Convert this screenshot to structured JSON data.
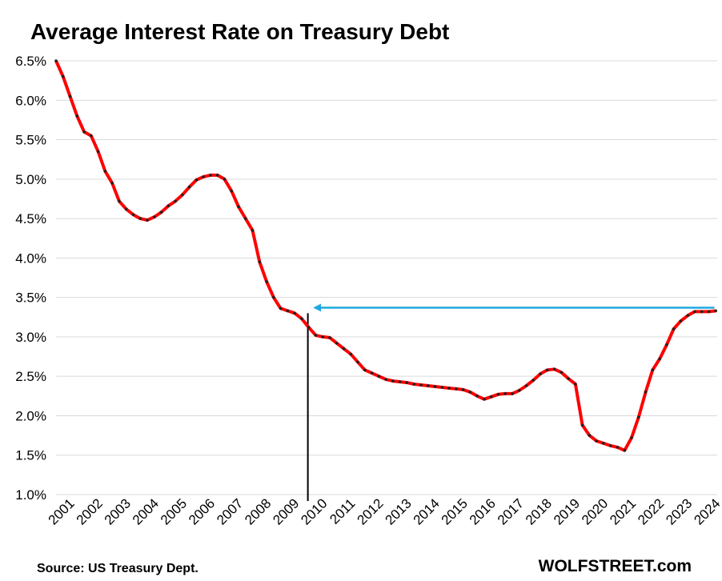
{
  "chart_data": {
    "type": "line",
    "title": "Average Interest Rate on Treasury Debt",
    "source": "Source: US Treasury Dept.",
    "brand": "WOLFSTREET.com",
    "ylim": [
      1.0,
      6.5
    ],
    "ytick_values": [
      1.0,
      1.5,
      2.0,
      2.5,
      3.0,
      3.5,
      4.0,
      4.5,
      5.0,
      5.5,
      6.0,
      6.5
    ],
    "ytick_labels": [
      "1.0%",
      "1.5%",
      "2.0%",
      "2.5%",
      "3.0%",
      "3.5%",
      "4.0%",
      "4.5%",
      "5.0%",
      "5.5%",
      "6.0%",
      "6.5%"
    ],
    "xlim": [
      2001.0,
      2024.55
    ],
    "xtick_labels": [
      "2001",
      "2002",
      "2003",
      "2004",
      "2005",
      "2006",
      "2007",
      "2008",
      "2009",
      "2010",
      "2011",
      "2012",
      "2013",
      "2014",
      "2015",
      "2016",
      "2017",
      "2018",
      "2019",
      "2020",
      "2021",
      "2022",
      "2023",
      "2024"
    ],
    "grid": "horizontal",
    "line_color": "#ff0000",
    "marker_color": "#222222",
    "arrow_color": "#1fa8e0",
    "series": [
      {
        "x": [
          2001.0,
          2001.25,
          2001.5,
          2001.75,
          2002.0,
          2002.25,
          2002.5,
          2002.75,
          2003.0,
          2003.25,
          2003.5,
          2003.75,
          2004.0,
          2004.25,
          2004.5,
          2004.75,
          2005.0,
          2005.25,
          2005.5,
          2005.75,
          2006.0,
          2006.25,
          2006.5,
          2006.75,
          2007.0,
          2007.25,
          2007.5,
          2007.75,
          2008.0,
          2008.25,
          2008.5,
          2008.75,
          2009.0,
          2009.25,
          2009.5,
          2009.75,
          2010.0,
          2010.25,
          2010.5,
          2010.75,
          2011.0,
          2011.25,
          2011.5,
          2011.75,
          2012.0,
          2012.25,
          2012.5,
          2012.75,
          2013.0,
          2013.25,
          2013.5,
          2013.75,
          2014.0,
          2014.25,
          2014.5,
          2014.75,
          2015.0,
          2015.25,
          2015.5,
          2015.75,
          2016.0,
          2016.25,
          2016.5,
          2016.75,
          2017.0,
          2017.25,
          2017.5,
          2017.75,
          2018.0,
          2018.25,
          2018.5,
          2018.75,
          2019.0,
          2019.25,
          2019.5,
          2019.75,
          2020.0,
          2020.25,
          2020.5,
          2020.75,
          2021.0,
          2021.25,
          2021.5,
          2021.75,
          2022.0,
          2022.25,
          2022.5,
          2022.75,
          2023.0,
          2023.25,
          2023.5,
          2023.75,
          2024.0,
          2024.25,
          2024.5
        ],
        "y": [
          6.5,
          6.3,
          6.05,
          5.8,
          5.6,
          5.55,
          5.35,
          5.1,
          4.95,
          4.72,
          4.62,
          4.55,
          4.5,
          4.48,
          4.52,
          4.58,
          4.66,
          4.72,
          4.8,
          4.9,
          4.99,
          5.03,
          5.05,
          5.05,
          5.0,
          4.85,
          4.65,
          4.5,
          4.35,
          3.95,
          3.7,
          3.5,
          3.36,
          3.33,
          3.3,
          3.23,
          3.12,
          3.02,
          3.0,
          2.99,
          2.92,
          2.85,
          2.78,
          2.68,
          2.58,
          2.54,
          2.5,
          2.46,
          2.44,
          2.43,
          2.42,
          2.4,
          2.39,
          2.38,
          2.37,
          2.36,
          2.35,
          2.34,
          2.33,
          2.3,
          2.25,
          2.21,
          2.24,
          2.27,
          2.28,
          2.28,
          2.32,
          2.38,
          2.45,
          2.53,
          2.58,
          2.59,
          2.55,
          2.47,
          2.4,
          1.88,
          1.75,
          1.68,
          1.65,
          1.62,
          1.6,
          1.56,
          1.72,
          1.98,
          2.3,
          2.58,
          2.72,
          2.9,
          3.1,
          3.2,
          3.27,
          3.32,
          3.32,
          3.32,
          3.33
        ]
      }
    ],
    "annotations": [
      {
        "type": "vertical-line",
        "x": 2009.97,
        "y_from": 1.0,
        "y_to": 3.3,
        "color": "#000000"
      },
      {
        "type": "arrow",
        "x_from": 2024.45,
        "x_to": 2010.1,
        "y": 3.37,
        "color": "#1fa8e0"
      }
    ]
  }
}
